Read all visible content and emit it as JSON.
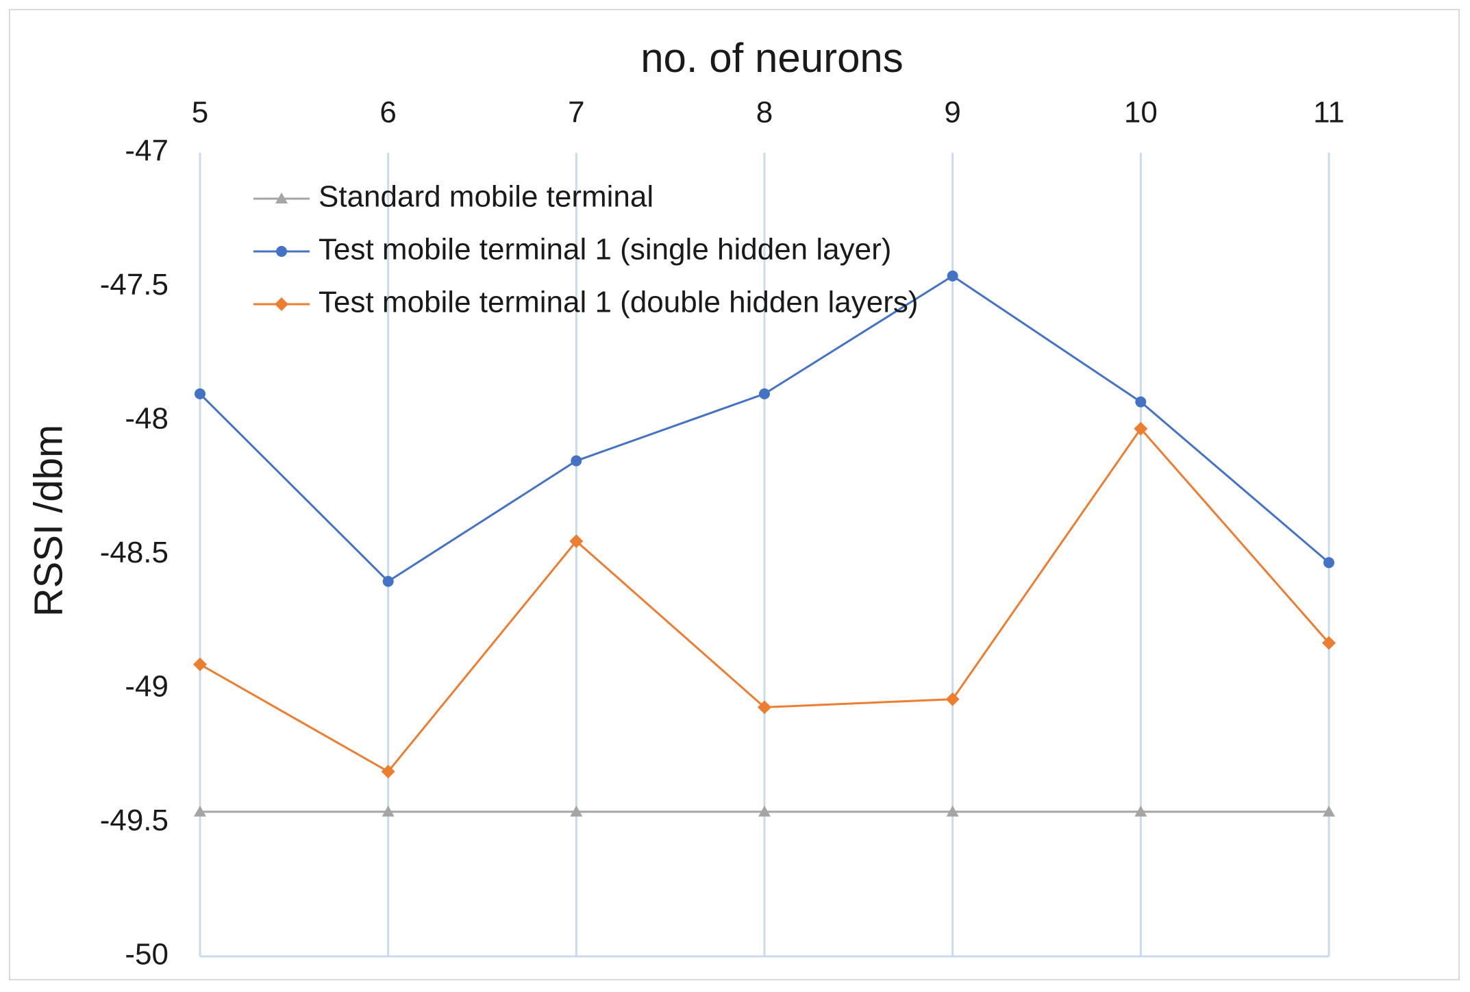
{
  "chart_data": {
    "type": "line",
    "x_label": "no. of neurons",
    "y_label": "RSSI /dbm",
    "x": [
      5,
      6,
      7,
      8,
      9,
      10,
      11
    ],
    "xlim": [
      5,
      11
    ],
    "xticks": [
      5,
      6,
      7,
      8,
      9,
      10,
      11
    ],
    "ylim": [
      -50,
      -47
    ],
    "yticks": [
      -47,
      -47.5,
      -48,
      -48.5,
      -49,
      -49.5,
      -50
    ],
    "x_axis_position": "top",
    "grid": true,
    "legend": "upper left",
    "series": [
      {
        "name": "Standard mobile terminal",
        "color": "#a5a5a5",
        "marker": "triangle",
        "values": [
          -49.46,
          -49.46,
          -49.46,
          -49.46,
          -49.46,
          -49.46,
          -49.46
        ]
      },
      {
        "name": "Test mobile terminal 1 (single hidden layer)",
        "color": "#4472c4",
        "marker": "circle",
        "values": [
          -47.9,
          -48.6,
          -48.15,
          -47.9,
          -47.46,
          -47.93,
          -48.53
        ]
      },
      {
        "name": "Test mobile terminal 1 (double hidden layers)",
        "color": "#ed7d31",
        "marker": "diamond",
        "values": [
          -48.91,
          -49.31,
          -48.45,
          -49.07,
          -49.04,
          -48.03,
          -48.83
        ]
      }
    ]
  }
}
